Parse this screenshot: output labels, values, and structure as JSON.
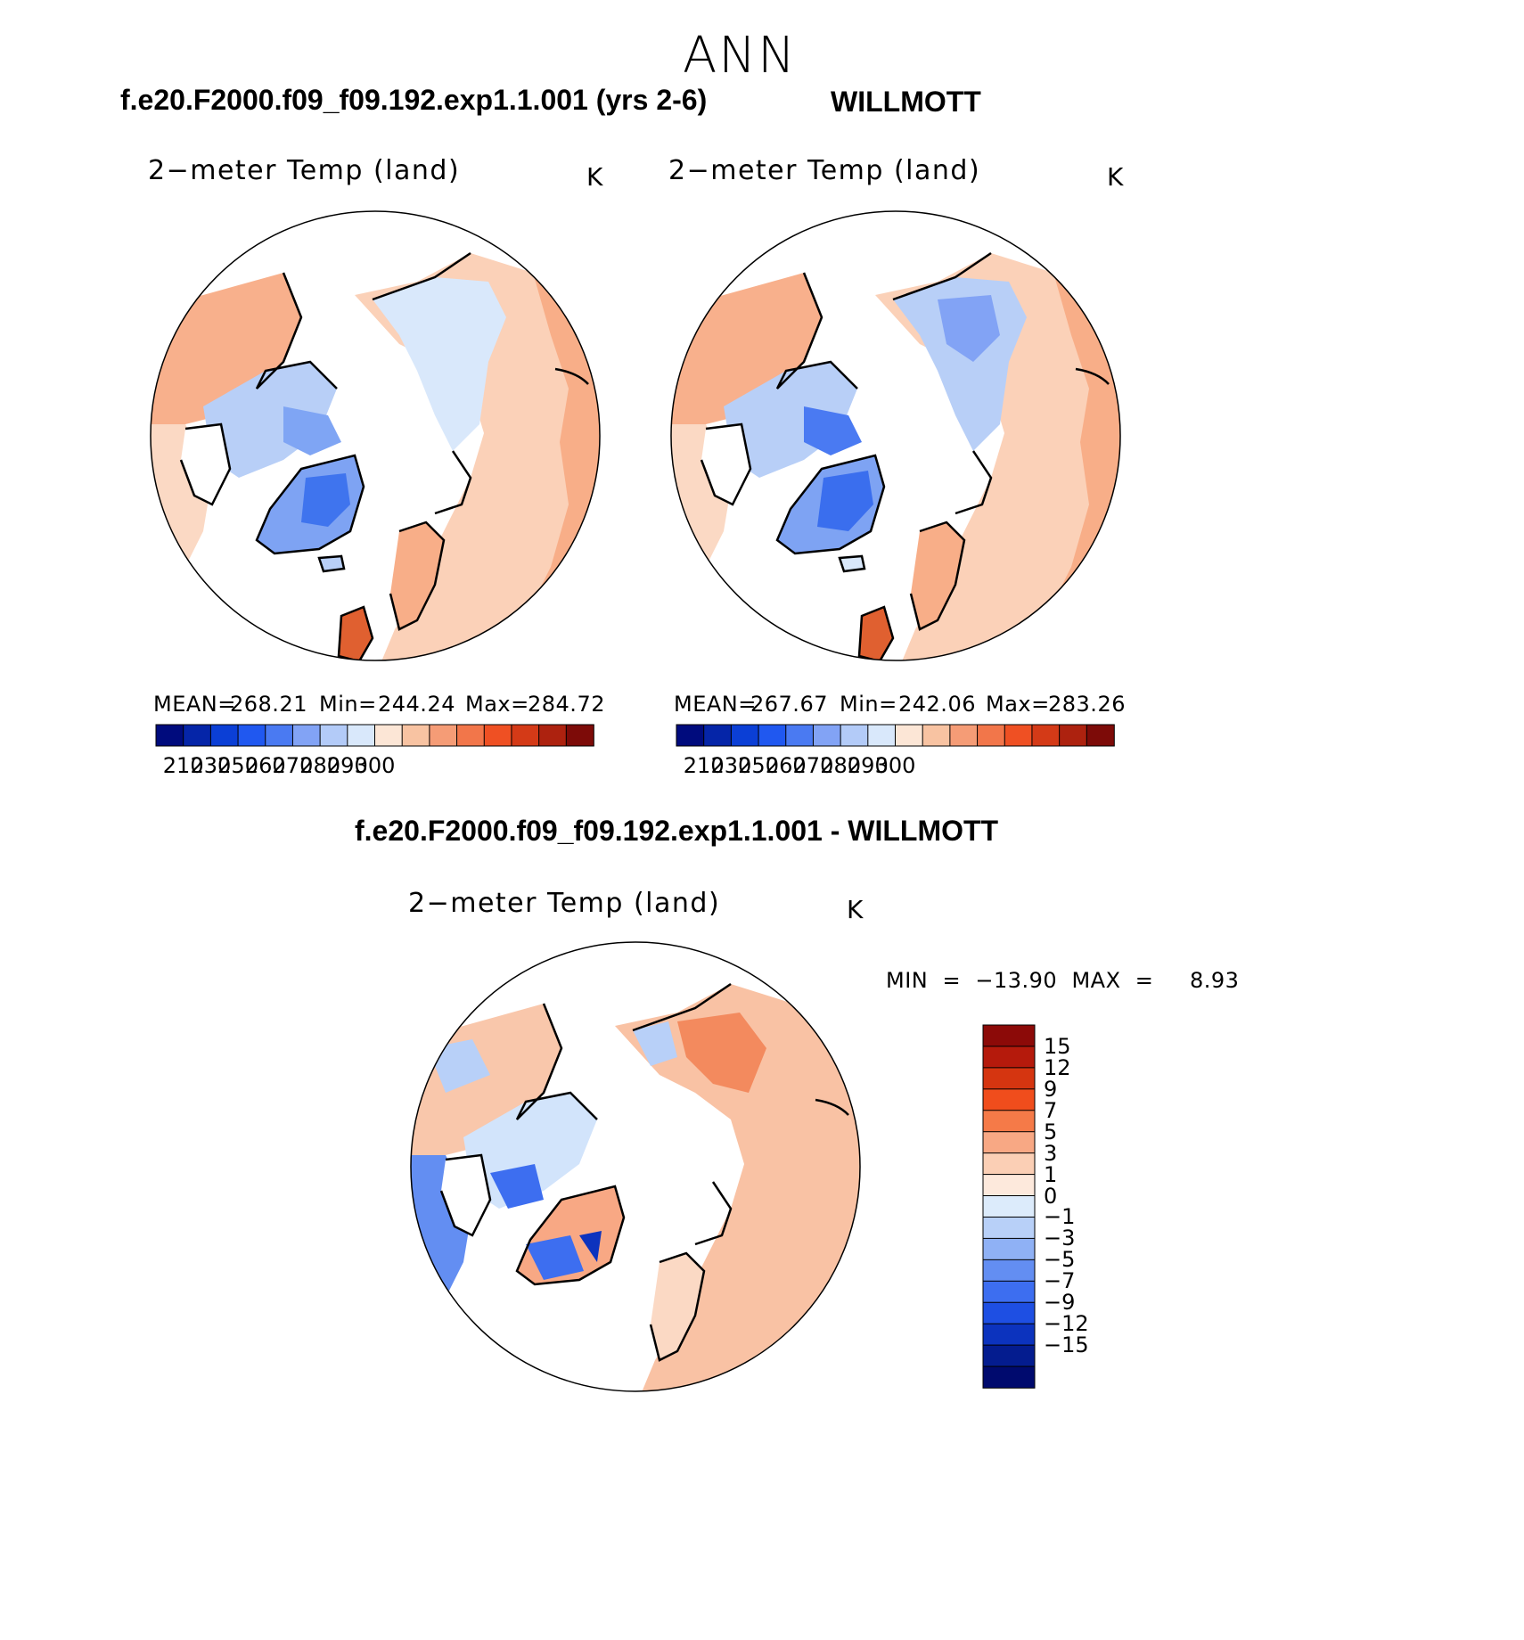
{
  "season": "ANN",
  "panels": [
    {
      "case_title": "f.e20.F2000.f09_f09.192.exp1.1.001 (yrs 2-6)",
      "var_title": "2−meter Temp (land)",
      "units": "K",
      "stats": {
        "mean_label": "MEAN=",
        "mean": "268.21",
        "min_label": "Min=",
        "min": "244.24",
        "max_label": "Max=",
        "max": "284.72"
      }
    },
    {
      "case_title": "WILLMOTT",
      "var_title": "2−meter Temp (land)",
      "units": "K",
      "stats": {
        "mean_label": "MEAN=",
        "mean": "267.67",
        "min_label": "Min=",
        "min": "242.06",
        "max_label": "Max=",
        "max": "283.26"
      }
    }
  ],
  "abs_colorbar": {
    "colors": [
      "#000b7d",
      "#0525a8",
      "#0b3fd6",
      "#2058f0",
      "#4a7af2",
      "#82a3f5",
      "#b3cbf8",
      "#d9e8fb",
      "#fce6d6",
      "#f8c3a2",
      "#f59c76",
      "#f2764a",
      "#ef5023",
      "#d43a17",
      "#ad220f",
      "#7d0b08"
    ],
    "labels": [
      "210",
      "230",
      "250",
      "260",
      "270",
      "280",
      "290",
      "300"
    ]
  },
  "diff": {
    "case_title": "f.e20.F2000.f09_f09.192.exp1.1.001 - WILLMOTT",
    "var_title": "2−meter Temp (land)",
    "units": "K",
    "minmax_text": "MIN  =  −13.90  MAX  =     8.93"
  },
  "diff_colorbar": {
    "colors_top_to_bottom": [
      "#8c0a08",
      "#b51a0c",
      "#d53510",
      "#f04d1c",
      "#f57a48",
      "#f8a884",
      "#fbcfb5",
      "#fde9dc",
      "#dcebfb",
      "#b8d0f8",
      "#8fb1f5",
      "#638ef2",
      "#3d6ef0",
      "#1e4fe3",
      "#0c33be",
      "#041c8f",
      "#000a6e"
    ],
    "labels": [
      "15",
      "12",
      "9",
      "7",
      "5",
      "3",
      "1",
      "0",
      "−1",
      "−3",
      "−5",
      "−7",
      "−9",
      "−12",
      "−15"
    ]
  },
  "icons": [
    "north-polar-map"
  ]
}
